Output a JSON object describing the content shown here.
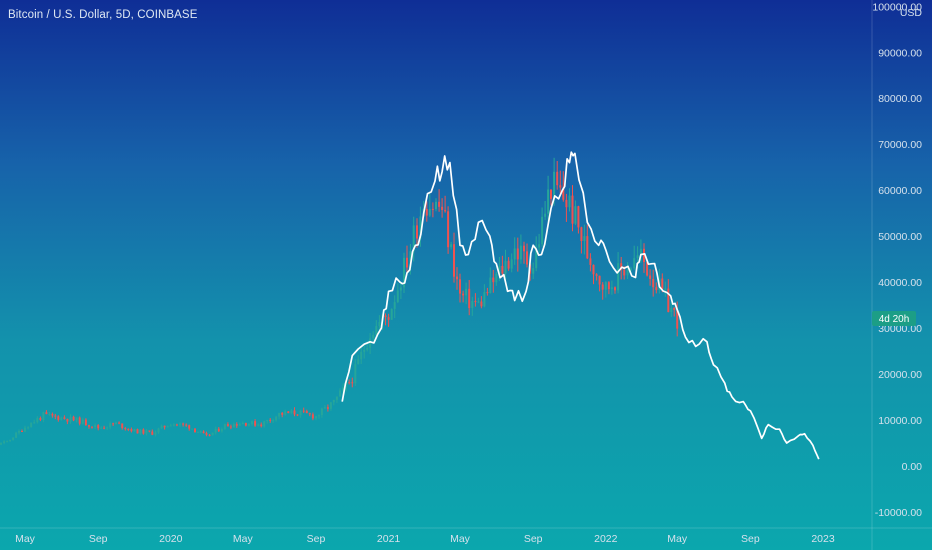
{
  "window": {
    "title": "Bitcoin / U.S. Dollar, 5D, COINBASE"
  },
  "chart_data": {
    "type": "line",
    "ylabel": "USD",
    "ylim": [
      -13500,
      100500
    ],
    "grid": false,
    "colors": {
      "up": "#26a69a",
      "down": "#ef5350",
      "overlay": "#ffffff",
      "axis_text": "#d6e1ec",
      "countdown_badge": "#1c9e86"
    },
    "y_ticks": [
      "100000.00",
      "90000.00",
      "80000.00",
      "70000.00",
      "60000.00",
      "50000.00",
      "40000.00",
      "30000.00",
      "20000.00",
      "10000.00",
      "0.00",
      "-10000.00"
    ],
    "x_ticks": [
      "May",
      "Sep",
      "2020",
      "May",
      "Sep",
      "2021",
      "May",
      "Sep",
      "2022",
      "May",
      "Sep",
      "2023"
    ],
    "countdown_label": "4d 20h",
    "series": [
      {
        "kind": "candlestick",
        "x": [
          "2019-01-01",
          "2019-02-01",
          "2019-03-01",
          "2019-04-01",
          "2019-05-01",
          "2019-06-01",
          "2019-07-01",
          "2019-08-01",
          "2019-09-01",
          "2019-10-01",
          "2019-11-01",
          "2019-12-01",
          "2020-01-01",
          "2020-02-01",
          "2020-03-01",
          "2020-04-01",
          "2020-05-01",
          "2020-06-01",
          "2020-07-01",
          "2020-08-01",
          "2020-09-01",
          "2020-10-01",
          "2020-11-01",
          "2020-12-01",
          "2021-01-01",
          "2021-02-01",
          "2021-03-01",
          "2021-04-01",
          "2021-05-01",
          "2021-06-01",
          "2021-07-01",
          "2021-08-01",
          "2021-09-01",
          "2021-10-01",
          "2021-11-01",
          "2021-12-01",
          "2022-01-01",
          "2022-02-01",
          "2022-03-01",
          "2022-04-01",
          "2022-05-01"
        ],
        "y": [
          3600,
          3800,
          4100,
          5300,
          8500,
          11000,
          10500,
          9800,
          8300,
          9200,
          7600,
          7200,
          9300,
          8600,
          6400,
          8800,
          9400,
          9100,
          11300,
          11600,
          10800,
          13800,
          19200,
          29000,
          33000,
          45000,
          58000,
          56000,
          37000,
          35000,
          41000,
          47000,
          43800,
          61300,
          57000,
          46300,
          38500,
          43200,
          45500,
          38500,
          31800
        ]
      },
      {
        "kind": "line",
        "x": [
          "2020-10-15",
          "2020-11-01",
          "2020-12-01",
          "2020-12-20",
          "2021-01-01",
          "2021-01-20",
          "2021-02-01",
          "2021-02-15",
          "2021-03-01",
          "2021-03-20",
          "2021-04-01",
          "2021-04-14",
          "2021-05-01",
          "2021-05-15",
          "2021-06-01",
          "2021-06-20",
          "2021-07-01",
          "2021-07-20",
          "2021-08-01",
          "2021-08-20",
          "2021-09-01",
          "2021-09-15",
          "2021-10-01",
          "2021-10-20",
          "2021-11-01",
          "2021-11-10",
          "2021-12-01",
          "2021-12-20",
          "2022-01-01",
          "2022-01-20",
          "2022-02-01",
          "2022-02-20",
          "2022-03-01",
          "2022-03-20",
          "2022-04-01",
          "2022-04-20",
          "2022-05-01",
          "2022-05-15",
          "2022-06-01",
          "2022-06-20",
          "2022-07-01",
          "2022-07-20",
          "2022-08-01",
          "2022-08-20",
          "2022-09-01",
          "2022-09-20",
          "2022-10-01",
          "2022-10-20",
          "2022-11-01",
          "2022-11-20",
          "2022-12-01",
          "2022-12-15",
          "2022-12-25"
        ],
        "y": [
          14000,
          24000,
          27000,
          30000,
          38000,
          40000,
          42000,
          48000,
          55000,
          62000,
          64000,
          66000,
          48000,
          46000,
          53000,
          50000,
          44000,
          38000,
          36000,
          38000,
          48000,
          46000,
          56000,
          60000,
          66000,
          68000,
          53000,
          48000,
          47000,
          42000,
          43000,
          41000,
          46000,
          44000,
          39000,
          37000,
          34000,
          28000,
          26000,
          27000,
          22000,
          18000,
          15000,
          14000,
          12000,
          6000,
          9000,
          8000,
          5000,
          6500,
          7000,
          4500,
          1500
        ]
      }
    ]
  }
}
